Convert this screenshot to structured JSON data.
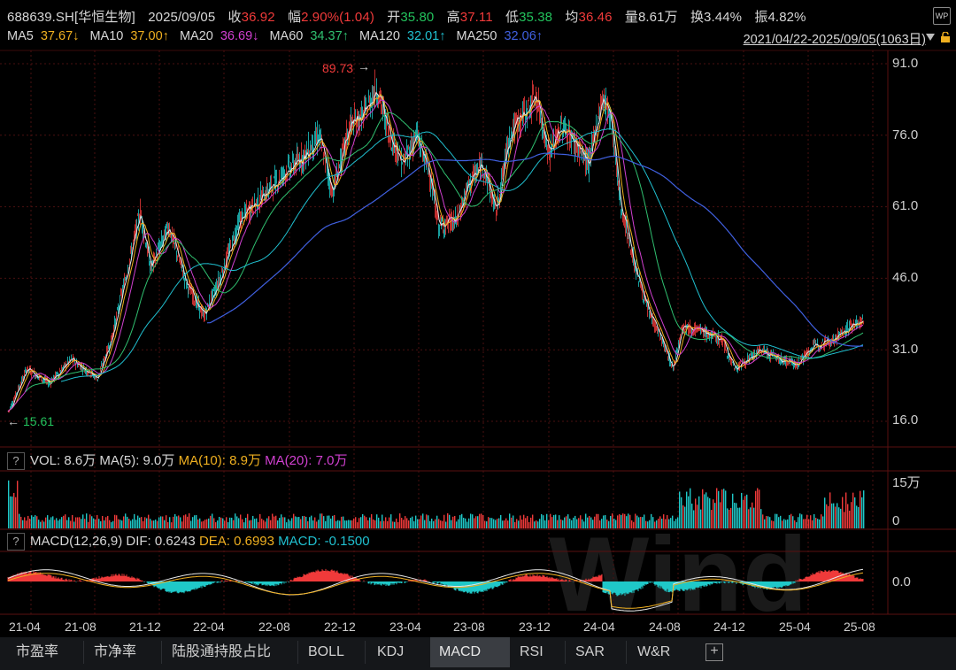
{
  "header": {
    "ticker": "688639.SH[华恒生物]",
    "date": "2025/09/05",
    "close_label": "收",
    "close": "36.92",
    "change_label": "幅",
    "change": "2.90%(1.04)",
    "open_label": "开",
    "open": "35.80",
    "high_label": "高",
    "high": "37.11",
    "low_label": "低",
    "low": "35.38",
    "avg_label": "均",
    "avg": "36.46",
    "volume_label": "量",
    "volume": "8.61万",
    "turnover_label": "换",
    "turnover": "3.44%",
    "amplitude_label": "振",
    "amplitude": "4.82%",
    "app_icon": "WP"
  },
  "ma_line": {
    "ma5": "MA5",
    "ma5_val": "37.67↓",
    "ma10": "MA10",
    "ma10_val": "37.00↑",
    "ma20": "MA20",
    "ma20_val": "36.69↓",
    "ma60": "MA60",
    "ma60_val": "34.37↑",
    "ma120": "MA120",
    "ma120_val": "32.01↑",
    "ma250": "MA250",
    "ma250_val": "32.06↑",
    "date_range": "2021/04/22-2025/09/05(1063日)"
  },
  "price_axis": [
    "91.0",
    "76.0",
    "61.0",
    "46.0",
    "31.0",
    "16.0"
  ],
  "annotations": {
    "max": "89.73",
    "min": "15.61",
    "max_arrow": "→",
    "min_arrow": "←"
  },
  "vol_panel": {
    "q": "?",
    "label": "VOL: 8.6万",
    "ma5": "MA(5): 9.0万",
    "ma10": "MA(10): 8.9万",
    "ma20": "MA(20): 7.0万",
    "axis_top": "15万",
    "axis_zero": "0"
  },
  "macd_panel": {
    "q": "?",
    "label": "MACD(12,26,9)",
    "dif": "DIF: 0.6243",
    "dea": "DEA: 0.6993",
    "macd": "MACD: -0.1500",
    "axis_zero": "0.0"
  },
  "x_axis": [
    "21-04",
    "21-08",
    "21-12",
    "22-04",
    "22-08",
    "22-12",
    "23-04",
    "23-08",
    "23-12",
    "24-04",
    "24-08",
    "24-12",
    "25-04",
    "25-08"
  ],
  "tabs": [
    "市盈率",
    "市净率",
    "陆股通持股占比",
    "BOLL",
    "KDJ",
    "MACD",
    "RSI",
    "SAR",
    "W&R"
  ],
  "plus": "+",
  "watermark": "Wind",
  "colors": {
    "up": "#f03a3a",
    "down": "#23c35d",
    "ma5": "#e8e8e8",
    "ma10": "#f0b020",
    "ma20": "#d040d0",
    "ma60": "#30c070",
    "ma120": "#20c0d0",
    "ma250": "#4060e0"
  },
  "chart_data": {
    "type": "line",
    "title": "688639.SH[华恒生物]",
    "x": [
      "21-04",
      "21-08",
      "21-12",
      "22-04",
      "22-08",
      "22-12",
      "23-04",
      "23-08",
      "23-12",
      "24-04",
      "24-08",
      "24-12",
      "25-04",
      "25-08",
      "25-09"
    ],
    "series": [
      {
        "name": "Close",
        "values": [
          18,
          26,
          55,
          40,
          58,
          76,
          72,
          60,
          78,
          74,
          30,
          28,
          27,
          33,
          36.92
        ]
      },
      {
        "name": "MA250",
        "values": [
          null,
          null,
          null,
          38,
          48,
          56,
          65,
          68,
          68,
          70,
          60,
          44,
          33,
          32,
          32.06
        ]
      }
    ],
    "ylim": [
      12,
      93
    ],
    "max": 89.73,
    "min": 15.61
  }
}
